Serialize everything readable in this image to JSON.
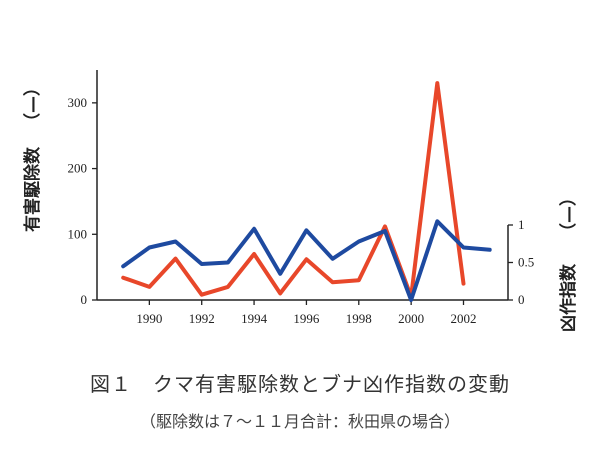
{
  "chart_data": {
    "type": "line",
    "x": [
      1989,
      1990,
      1991,
      1992,
      1993,
      1994,
      1995,
      1996,
      1997,
      1998,
      1999,
      2000,
      2001,
      2002,
      2003
    ],
    "xticks": [
      "1990",
      "1992",
      "1994",
      "1996",
      "1998",
      "2000",
      "2002"
    ],
    "xtick_values": [
      1990,
      1992,
      1994,
      1996,
      1998,
      2000,
      2002
    ],
    "y_left": {
      "label": "有害駆除数",
      "marker": "（—）",
      "ticks": [
        "0",
        "100",
        "200",
        "300"
      ],
      "lim": [
        0,
        350
      ]
    },
    "y_right": {
      "label": "凶作指数",
      "marker": "（—）",
      "ticks": [
        "0",
        "0.5",
        "1"
      ],
      "lim": [
        0,
        1
      ]
    },
    "series": [
      {
        "axis": "left",
        "color": "#e8472a",
        "values": [
          34,
          20,
          63,
          8,
          20,
          70,
          10,
          62,
          27,
          30,
          112,
          5,
          330,
          25,
          null
        ]
      },
      {
        "axis": "right",
        "color": "#1e4aa0",
        "values": [
          0.45,
          0.7,
          0.78,
          0.48,
          0.5,
          0.95,
          0.35,
          0.93,
          0.55,
          0.78,
          0.92,
          0.0,
          1.05,
          0.7,
          0.67
        ]
      }
    ]
  },
  "caption": "図１　クマ有害駆除数とブナ凶作指数の変動",
  "subcaption": "（駆除数は７～１１月合計：秋田県の場合）"
}
